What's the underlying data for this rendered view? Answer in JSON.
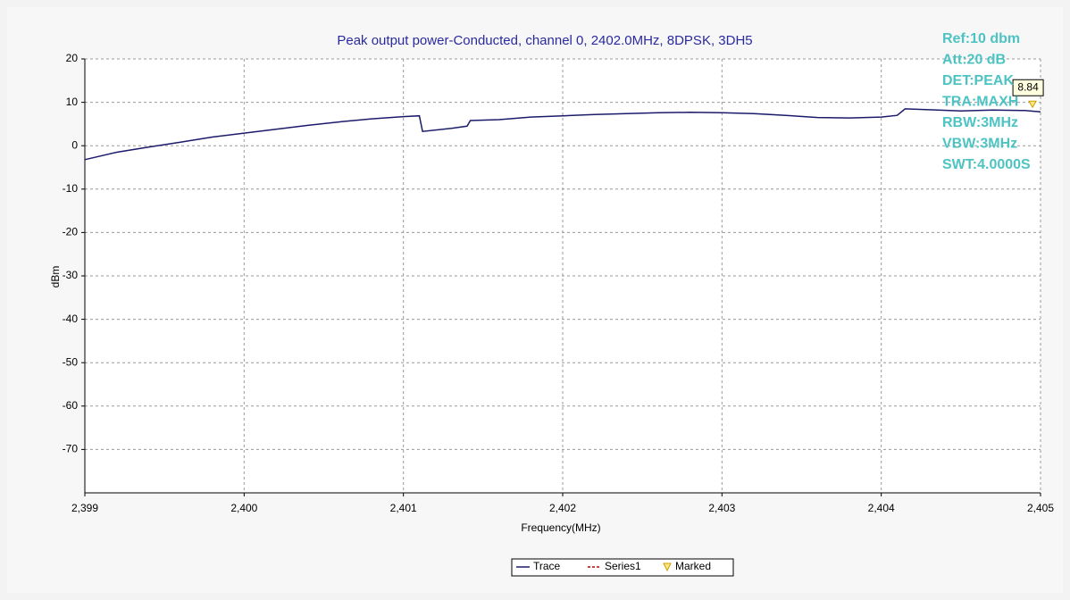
{
  "chart_data": {
    "type": "line",
    "title": "Peak output power-Conducted, channel 0, 2402.0MHz, 8DPSK, 3DH5",
    "x_label": "Frequency(MHz)",
    "y_label": "dBm",
    "x": [
      2399,
      2399.2,
      2399.4,
      2399.6,
      2399.8,
      2400,
      2400.2,
      2400.4,
      2400.6,
      2400.8,
      2401,
      2401.1,
      2401.12,
      2401.3,
      2401.4,
      2401.42,
      2401.6,
      2401.8,
      2402,
      2402.2,
      2402.4,
      2402.6,
      2402.8,
      2403,
      2403.2,
      2403.4,
      2403.6,
      2403.8,
      2404,
      2404.1,
      2404.15,
      2404.3,
      2404.5,
      2404.7,
      2404.9,
      2405
    ],
    "series": [
      {
        "name": "Trace",
        "color": "#1b1b6b",
        "values": [
          -3.2,
          -1.5,
          -0.3,
          0.8,
          2.0,
          2.9,
          3.8,
          4.7,
          5.5,
          6.2,
          6.7,
          6.9,
          3.3,
          4.0,
          4.5,
          5.8,
          6.0,
          6.6,
          6.9,
          7.2,
          7.4,
          7.6,
          7.7,
          7.6,
          7.4,
          7.0,
          6.5,
          6.4,
          6.6,
          7.0,
          8.5,
          8.3,
          8.0,
          8.2,
          8.1,
          7.8
        ]
      }
    ],
    "legend_extra": [
      {
        "name": "Series1",
        "color": "#c00000"
      },
      {
        "name": "Marked",
        "color": "#c8a000"
      }
    ],
    "marker": {
      "x": 2404.95,
      "value": 8.84
    },
    "info": [
      "Ref:10 dbm",
      "Att:20 dB",
      "DET:PEAK",
      "TRA:MAXH",
      "RBW:3MHz",
      "VBW:3MHz",
      "SWT:4.0000S"
    ],
    "info_color": "#4ec3c3",
    "title_color": "#2a2aa0",
    "xlim": [
      2399,
      2405
    ],
    "ylim": [
      -80,
      20
    ],
    "xticks": [
      {
        "value": 2399,
        "label": "2,399"
      },
      {
        "value": 2400,
        "label": "2,400"
      },
      {
        "value": 2401,
        "label": "2,401"
      },
      {
        "value": 2402,
        "label": "2,402"
      },
      {
        "value": 2403,
        "label": "2,403"
      },
      {
        "value": 2404,
        "label": "2,404"
      },
      {
        "value": 2405,
        "label": "2,405"
      }
    ],
    "yticks": [
      20,
      10,
      0,
      -10,
      -20,
      -30,
      -40,
      -50,
      -60,
      -70
    ],
    "grid": true
  }
}
